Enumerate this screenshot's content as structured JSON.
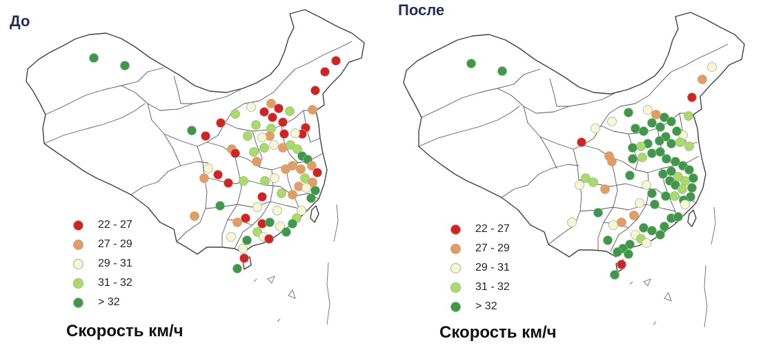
{
  "colors": {
    "c22_27": "#d7211e",
    "c27_29": "#e89c5c",
    "c29_31": "#f6f9cf",
    "c31_32": "#a6de63",
    "c32": "#3a9a46"
  },
  "legend": [
    {
      "label": "22 - 27",
      "color_key": "c22_27"
    },
    {
      "label": "27 - 29",
      "color_key": "c27_29"
    },
    {
      "label": "29 - 31",
      "color_key": "c29_31"
    },
    {
      "label": "31 - 32",
      "color_key": "c31_32"
    },
    {
      "label": "> 32",
      "color_key": "c32"
    }
  ],
  "maps": [
    {
      "title": "До",
      "caption": "Скорость км/ч"
    },
    {
      "title": "После",
      "caption": "Скорость км/ч"
    }
  ]
}
